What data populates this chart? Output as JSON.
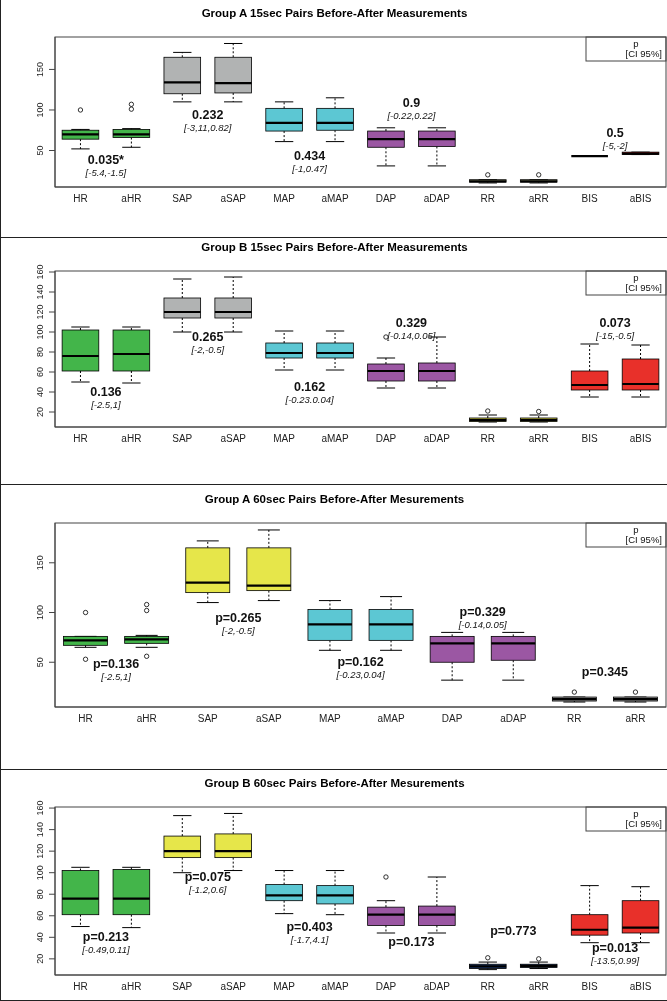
{
  "chart_data": [
    {
      "type": "box",
      "title": "Group A 15sec Pairs Before-After Measurements",
      "categories": [
        "HR",
        "aHR",
        "SAP",
        "aSAP",
        "MAP",
        "aMAP",
        "DAP",
        "aDAP",
        "RR",
        "aRR",
        "BIS",
        "aBIS"
      ],
      "colors": [
        "#43b54a",
        "#43b54a",
        "#b1b3b3",
        "#b1b3b3",
        "#5cc7d3",
        "#5cc7d3",
        "#9b57a3",
        "#9b57a3",
        "#b7b98a",
        "#b7b98a",
        "#000000",
        "#8b0a0a"
      ],
      "boxes": [
        {
          "low": 52,
          "q1": 64,
          "median": 70,
          "q3": 75,
          "high": 76,
          "outliers": [
            100
          ]
        },
        {
          "low": 54,
          "q1": 66,
          "median": 70,
          "q3": 76,
          "high": 77,
          "outliers": [
            101,
            107
          ]
        },
        {
          "low": 110,
          "q1": 120,
          "median": 134,
          "q3": 165,
          "high": 171
        },
        {
          "low": 110,
          "q1": 121,
          "median": 133,
          "q3": 165,
          "high": 182
        },
        {
          "low": 61,
          "q1": 74,
          "median": 84,
          "q3": 102,
          "high": 110
        },
        {
          "low": 61,
          "q1": 75,
          "median": 84,
          "q3": 102,
          "high": 115
        },
        {
          "low": 31,
          "q1": 54,
          "median": 64,
          "q3": 74,
          "high": 78
        },
        {
          "low": 31,
          "q1": 55,
          "median": 64,
          "q3": 74,
          "high": 78
        },
        {
          "low": 10,
          "q1": 11,
          "median": 12,
          "q3": 14,
          "high": 14,
          "outliers": [
            20
          ]
        },
        {
          "low": 10,
          "q1": 11,
          "median": 12,
          "q3": 14,
          "high": 14,
          "outliers": [
            20
          ]
        },
        {
          "low": 43,
          "q1": 43,
          "median": 43,
          "q3": 43,
          "high": 43
        },
        {
          "low": 45,
          "q1": 45,
          "median": 46,
          "q3": 48,
          "high": 48
        }
      ],
      "ylim": [
        5,
        190
      ],
      "yticks": [
        50,
        100,
        150
      ],
      "annotations": [
        "0.035*\n[-5.4,-1.5]",
        "0.232\n[-3,11,0.82]",
        "0.434\n[-1,0.47]",
        "0.9\n[-0.22,0.22]",
        "0.5\n[-5,-2]",
        "p\n[CI 95%]"
      ]
    },
    {
      "type": "box",
      "title": "Group B 15sec Pairs Before-After Measurements",
      "categories": [
        "HR",
        "aHR",
        "SAP",
        "aSAP",
        "MAP",
        "aMAP",
        "DAP",
        "aDAP",
        "RR",
        "aRR",
        "BIS",
        "aBIS"
      ],
      "colors": [
        "#43b54a",
        "#43b54a",
        "#b1b3b3",
        "#b1b3b3",
        "#5cc7d3",
        "#5cc7d3",
        "#9b57a3",
        "#9b57a3",
        "#c9c53f",
        "#c9c53f",
        "#e8302a",
        "#e8302a"
      ],
      "boxes": [
        {
          "low": 50,
          "q1": 61,
          "median": 76,
          "q3": 102,
          "high": 105
        },
        {
          "low": 49,
          "q1": 61,
          "median": 78,
          "q3": 102,
          "high": 105
        },
        {
          "low": 100,
          "q1": 114,
          "median": 120,
          "q3": 134,
          "high": 153
        },
        {
          "low": 100,
          "q1": 114,
          "median": 120,
          "q3": 134,
          "high": 155
        },
        {
          "low": 62,
          "q1": 74,
          "median": 79,
          "q3": 89,
          "high": 101
        },
        {
          "low": 62,
          "q1": 74,
          "median": 79,
          "q3": 89,
          "high": 101
        },
        {
          "low": 44,
          "q1": 51,
          "median": 61,
          "q3": 68,
          "high": 74,
          "outliers": [
            95
          ]
        },
        {
          "low": 44,
          "q1": 51,
          "median": 61,
          "q3": 69,
          "high": 95
        },
        {
          "low": 10,
          "q1": 10.5,
          "median": 12,
          "q3": 14,
          "high": 17,
          "outliers": [
            21
          ]
        },
        {
          "low": 10,
          "q1": 10.5,
          "median": 12,
          "q3": 14,
          "high": 17,
          "outliers": [
            20.5
          ]
        },
        {
          "low": 35,
          "q1": 42,
          "median": 47,
          "q3": 61,
          "high": 88
        },
        {
          "low": 35,
          "q1": 42,
          "median": 48,
          "q3": 73,
          "high": 87
        }
      ],
      "ylim": [
        5,
        161
      ],
      "yticks": [
        20,
        40,
        60,
        80,
        100,
        120,
        140,
        160
      ],
      "annotations": [
        "0.136\n[-2.5,1]",
        "0.265\n[-2,-0.5]",
        "0.162\n[-0.23.0.04]",
        "0.329\n[-0.14,0.05]",
        "0.073\n[-15,-0.5]",
        "p\n[CI 95%]"
      ]
    },
    {
      "type": "box",
      "title": "Group A 60sec Pairs Before-After Mesurements",
      "categories": [
        "HR",
        "aHR",
        "SAP",
        "aSAP",
        "MAP",
        "aMAP",
        "DAP",
        "aDAP",
        "RR",
        "aRR"
      ],
      "colors": [
        "#43b54a",
        "#43b54a",
        "#e6e64a",
        "#e6e64a",
        "#5cc7d3",
        "#5cc7d3",
        "#9b57a3",
        "#9b57a3",
        "#a8a8a8",
        "#a8a8a8"
      ],
      "boxes": [
        {
          "low": 65,
          "q1": 67,
          "median": 72,
          "q3": 76,
          "high": 76,
          "outliers": [
            53,
            100
          ]
        },
        {
          "low": 65,
          "q1": 69,
          "median": 73,
          "q3": 76,
          "high": 77,
          "outliers": [
            56,
            102,
            108
          ]
        },
        {
          "low": 110,
          "q1": 120,
          "median": 130,
          "q3": 165,
          "high": 172
        },
        {
          "low": 112,
          "q1": 122,
          "median": 127,
          "q3": 165,
          "high": 183
        },
        {
          "low": 62,
          "q1": 72,
          "median": 88,
          "q3": 103,
          "high": 112
        },
        {
          "low": 62,
          "q1": 72,
          "median": 88,
          "q3": 103,
          "high": 116
        },
        {
          "low": 32,
          "q1": 50,
          "median": 69,
          "q3": 76,
          "high": 80
        },
        {
          "low": 32,
          "q1": 52,
          "median": 69,
          "q3": 76,
          "high": 80
        },
        {
          "low": 10,
          "q1": 11,
          "median": 13,
          "q3": 15,
          "high": 15,
          "outliers": [
            20
          ]
        },
        {
          "low": 10,
          "q1": 11,
          "median": 13,
          "q3": 15,
          "high": 15,
          "outliers": [
            20
          ]
        }
      ],
      "ylim": [
        5,
        190
      ],
      "yticks": [
        50,
        100,
        150
      ],
      "annotations": [
        "p=0.136\n[-2.5,1]",
        "p=0.265\n[-2,-0.5]",
        "p=0.162\n[-0.23,0.04]",
        "p=0.329\n[-0.14,0.05]",
        "p=0.345",
        "p\n[CI 95%]"
      ]
    },
    {
      "type": "box",
      "title": "Group B 60sec Pairs Before-After Mesurements",
      "categories": [
        "HR",
        "aHR",
        "SAP",
        "aSAP",
        "MAP",
        "aMAP",
        "DAP",
        "aDAP",
        "RR",
        "aRR",
        "BIS",
        "aBIS"
      ],
      "colors": [
        "#43b54a",
        "#43b54a",
        "#e6e64a",
        "#e6e64a",
        "#5cc7d3",
        "#5cc7d3",
        "#9b57a3",
        "#9b57a3",
        "#1a3f7f",
        "#1a3f7f",
        "#e8302a",
        "#e8302a"
      ],
      "boxes": [
        {
          "low": 50,
          "q1": 61,
          "median": 76,
          "q3": 102,
          "high": 105
        },
        {
          "low": 49,
          "q1": 61,
          "median": 76,
          "q3": 103,
          "high": 105
        },
        {
          "low": 100,
          "q1": 114,
          "median": 120,
          "q3": 134,
          "high": 153
        },
        {
          "low": 102,
          "q1": 114,
          "median": 120,
          "q3": 136,
          "high": 155
        },
        {
          "low": 62,
          "q1": 74,
          "median": 79,
          "q3": 89,
          "high": 102
        },
        {
          "low": 61,
          "q1": 71,
          "median": 79,
          "q3": 88,
          "high": 102
        },
        {
          "low": 44,
          "q1": 51,
          "median": 61,
          "q3": 68,
          "high": 74,
          "outliers": [
            96
          ]
        },
        {
          "low": 44,
          "q1": 51,
          "median": 61,
          "q3": 69,
          "high": 96
        },
        {
          "low": 10,
          "q1": 11,
          "median": 13,
          "q3": 15,
          "high": 17,
          "outliers": [
            21
          ]
        },
        {
          "low": 11,
          "q1": 12,
          "median": 13.5,
          "q3": 15,
          "high": 17,
          "outliers": [
            20
          ]
        },
        {
          "low": 35,
          "q1": 42,
          "median": 47,
          "q3": 61,
          "high": 88
        },
        {
          "low": 35,
          "q1": 44,
          "median": 49,
          "q3": 74,
          "high": 87
        }
      ],
      "ylim": [
        5,
        161
      ],
      "yticks": [
        20,
        40,
        60,
        80,
        100,
        120,
        140,
        160
      ],
      "annotations": [
        "p=0.213\n[-0.49,0.11]",
        "p=0.075\n[-1.2,0.6]",
        "p=0.403\n[-1.7,4.1]",
        "p=0.173",
        "p=0.773",
        "p=0.013\n[-13.5,0.99]",
        "p\n[CI 95%]"
      ]
    }
  ]
}
